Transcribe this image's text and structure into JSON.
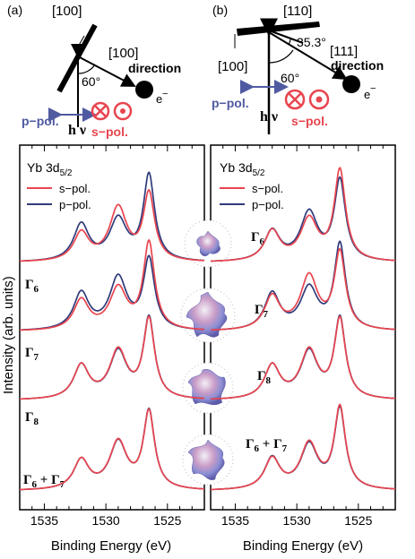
{
  "colors": {
    "s_pol": "#e8454f",
    "p_pol": "#303b7a",
    "axis": "#000000",
    "blue_arrow": "#4f5aa0"
  },
  "geometry": {
    "a": {
      "panel_tag": "(a)",
      "surface_label": "[100]",
      "direction_label": "[100]",
      "direction_word": "direction",
      "angle": "60°",
      "electron": "e",
      "electron_sign": "−",
      "p_pol_label": "p−pol.",
      "s_pol_label": "s−pol.",
      "photon_label": "h ν"
    },
    "b": {
      "panel_tag": "(b)",
      "surface_label": "[110]",
      "side_label": "[100]",
      "direction_label": "[111]",
      "direction_word": "direction",
      "angle_outer": "35.3°",
      "angle": "60°",
      "electron": "e",
      "electron_sign": "−",
      "p_pol_label": "p−pol.",
      "s_pol_label": "s−pol.",
      "photon_label": "h ν"
    }
  },
  "chart_data": [
    {
      "type": "line",
      "panel": "left",
      "title_main": "Yb 3d",
      "title_sub": "5/2",
      "xlabel": "Binding Energy (eV)",
      "ylabel": "Intensity (arb. units)",
      "xlim": [
        1537,
        1522
      ],
      "x_ticks": [
        1535,
        1530,
        1525
      ],
      "legend": [
        "s−pol.",
        "p−pol."
      ],
      "legend_position": "top-left",
      "peaks_eV": [
        1532.0,
        1529.0,
        1526.5
      ],
      "curves": [
        {
          "label_main": "Γ",
          "label_sub": "6",
          "s_pol_heights": [
            0.42,
            0.8,
            1.0
          ],
          "p_pol_heights": [
            0.55,
            0.62,
            1.28
          ]
        },
        {
          "label_main": "Γ",
          "label_sub": "7",
          "s_pol_heights": [
            0.45,
            0.62,
            1.3
          ],
          "p_pol_heights": [
            0.55,
            0.78,
            1.05
          ]
        },
        {
          "label_main": "Γ",
          "label_sub": "8",
          "s_pol_heights": [
            0.5,
            0.72,
            1.18
          ],
          "p_pol_heights": [
            0.5,
            0.7,
            1.2
          ]
        },
        {
          "label_main": "Γ",
          "label_sub": "6",
          "label_plus": " + Γ",
          "label_sub2": "7",
          "s_pol_heights": [
            0.44,
            0.71,
            1.15
          ],
          "p_pol_heights": [
            0.44,
            0.7,
            1.16
          ]
        }
      ]
    },
    {
      "type": "line",
      "panel": "right",
      "title_main": "Yb 3d",
      "title_sub": "5/2",
      "xlabel": "Binding Energy (eV)",
      "xlim": [
        1537,
        1522
      ],
      "x_ticks": [
        1535,
        1530,
        1525
      ],
      "legend": [
        "s−pol.",
        "p−pol."
      ],
      "legend_position": "top-left",
      "peaks_eV": [
        1532.0,
        1529.0,
        1526.5
      ],
      "curves": [
        {
          "label_main": "Γ",
          "label_sub": "6",
          "s_pol_heights": [
            0.45,
            0.62,
            1.35
          ],
          "p_pol_heights": [
            0.45,
            0.72,
            1.2
          ]
        },
        {
          "label_main": "Γ",
          "label_sub": "7",
          "s_pol_heights": [
            0.5,
            0.8,
            1.15
          ],
          "p_pol_heights": [
            0.55,
            0.62,
            1.28
          ]
        },
        {
          "label_main": "Γ",
          "label_sub": "8",
          "s_pol_heights": [
            0.5,
            0.72,
            1.18
          ],
          "p_pol_heights": [
            0.5,
            0.7,
            1.2
          ]
        },
        {
          "label_main": "Γ",
          "label_sub": "6",
          "label_plus": " + Γ",
          "label_sub2": "7",
          "s_pol_heights": [
            0.46,
            0.68,
            1.22
          ],
          "p_pol_heights": [
            0.47,
            0.66,
            1.2
          ]
        }
      ]
    }
  ]
}
